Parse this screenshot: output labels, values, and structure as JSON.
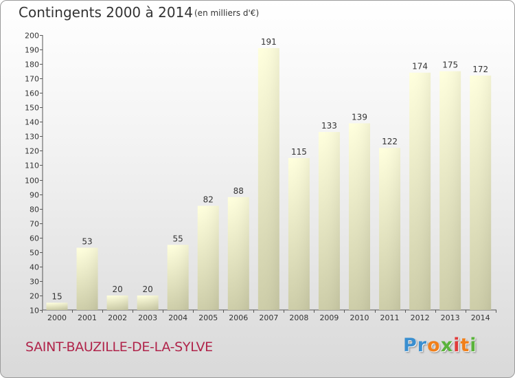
{
  "chart_data": {
    "type": "bar",
    "title": "Contingents 2000 à 2014",
    "subtitle": "(en milliers d'€)",
    "categories": [
      "2000",
      "2001",
      "2002",
      "2003",
      "2004",
      "2005",
      "2006",
      "2007",
      "2008",
      "2009",
      "2010",
      "2011",
      "2012",
      "2013",
      "2014"
    ],
    "values": [
      15,
      53,
      20,
      20,
      55,
      82,
      88,
      191,
      115,
      133,
      139,
      122,
      174,
      175,
      172
    ],
    "ylim": [
      10,
      200
    ],
    "yticks": [
      10,
      20,
      30,
      40,
      50,
      60,
      70,
      80,
      90,
      100,
      110,
      120,
      130,
      140,
      150,
      160,
      170,
      180,
      190,
      200
    ],
    "grid": false,
    "colors": {
      "bar_top": "#ffffdd",
      "bar_bottom": "#cdcda8",
      "axis": "#555555",
      "text": "#333333"
    }
  },
  "footer": {
    "commune": "SAINT-BAUZILLE-DE-LA-SYLVE",
    "logo_letters": [
      {
        "char": "P",
        "color": "#3a8fd0"
      },
      {
        "char": "r",
        "color": "#3a8fd0"
      },
      {
        "char": "o",
        "color": "#f07f1a"
      },
      {
        "char": "x",
        "color": "#5ab33c"
      },
      {
        "char": "i",
        "color": "#e03a3a"
      },
      {
        "char": "t",
        "color": "#f07f1a"
      },
      {
        "char": "i",
        "color": "#5ab33c"
      }
    ]
  }
}
